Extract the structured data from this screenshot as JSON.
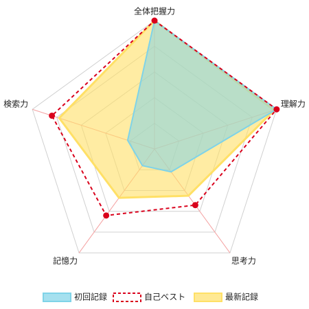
{
  "chart_data": {
    "type": "radar",
    "categories": [
      "全体把握力",
      "理解力",
      "思考力",
      "記憶力",
      "検索力"
    ],
    "rlim": [
      0,
      5
    ],
    "rticks": [
      1,
      2,
      3,
      4,
      5
    ],
    "series": [
      {
        "name": "初回記録",
        "color": "#7fd3e8",
        "values": [
          5,
          5,
          1.1,
          0.8,
          1.1
        ]
      },
      {
        "name": "自己ベスト",
        "color": "#d9001b",
        "values": [
          5,
          5,
          2.7,
          3.2,
          4.2
        ]
      },
      {
        "name": "最新記録",
        "color": "#ffe066",
        "values": [
          5,
          4.9,
          2.25,
          2.35,
          3.9
        ]
      }
    ]
  }
}
